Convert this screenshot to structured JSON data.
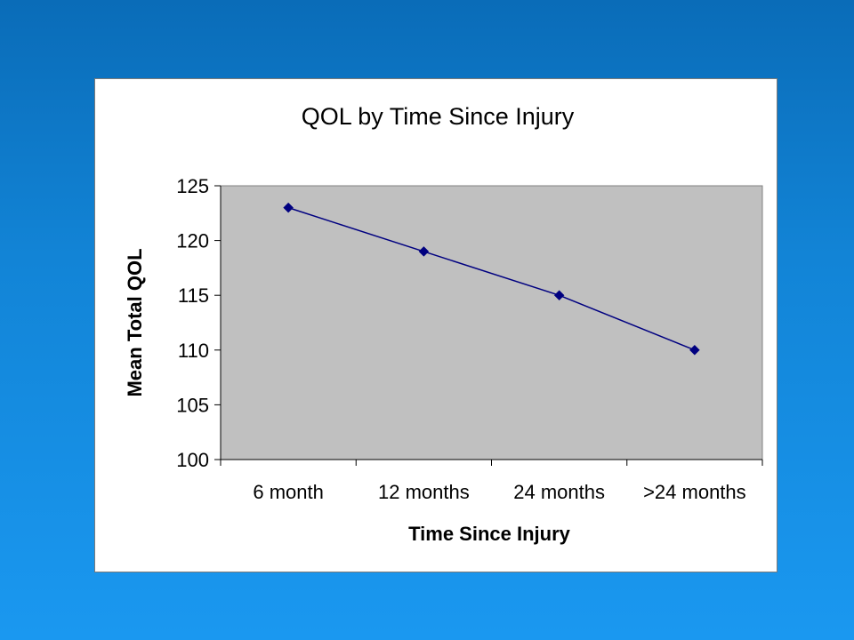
{
  "chart_data": {
    "type": "line",
    "title": "QOL by Time Since Injury",
    "xlabel": "Time Since Injury",
    "ylabel": "Mean Total QOL",
    "categories": [
      "6 month",
      "12 months",
      "24 months",
      ">24 months"
    ],
    "series": [
      {
        "values": [
          123,
          119,
          115,
          110
        ]
      }
    ],
    "ylim": [
      100,
      125
    ],
    "yticks": [
      100,
      105,
      110,
      115,
      120,
      125
    ],
    "grid": false,
    "legend": "none",
    "plot_background": "#c0c0c0",
    "line_color": "#000080",
    "marker": "diamond"
  }
}
